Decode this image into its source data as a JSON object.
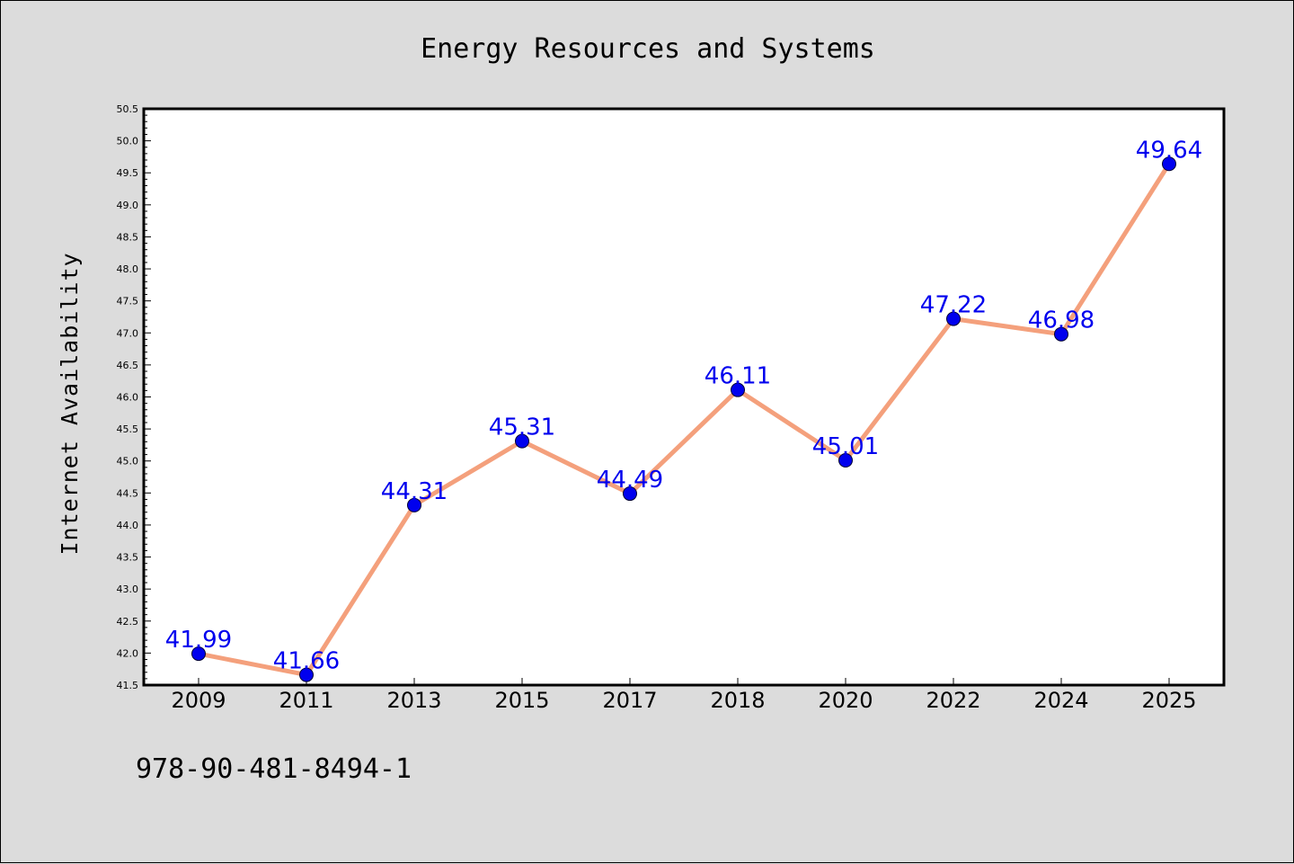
{
  "chart_data": {
    "type": "line",
    "title": "Energy Resources and Systems",
    "xlabel": "",
    "ylabel": "Internet Availability",
    "categories": [
      "2009",
      "2011",
      "2013",
      "2015",
      "2017",
      "2018",
      "2020",
      "2022",
      "2024",
      "2025"
    ],
    "series": [
      {
        "values": [
          41.99,
          41.66,
          44.31,
          45.31,
          44.49,
          46.11,
          45.01,
          47.22,
          46.98,
          49.64
        ],
        "labels": [
          "41.99",
          "41.66",
          "44.31",
          "45.31",
          "44.49",
          "46.11",
          "45.01",
          "47.22",
          "46.98",
          "49.64"
        ],
        "line_color": "#f4a07c",
        "marker_color": "#0000ee",
        "label_color": "#0000ee"
      }
    ],
    "ylim": [
      41.5,
      50.5
    ],
    "yticks": [
      "41.5",
      "42.0",
      "42.5",
      "43.0",
      "43.5",
      "44.0",
      "44.5",
      "45.0",
      "45.5",
      "46.0",
      "46.5",
      "47.0",
      "47.5",
      "48.0",
      "48.5",
      "49.0",
      "49.5",
      "50.0",
      "50.5"
    ],
    "grid": false,
    "legend": "none"
  },
  "footer": {
    "text": "978-90-481-8494-1"
  },
  "colors": {
    "background": "#dcdcdc",
    "plot_background": "#ffffff"
  }
}
